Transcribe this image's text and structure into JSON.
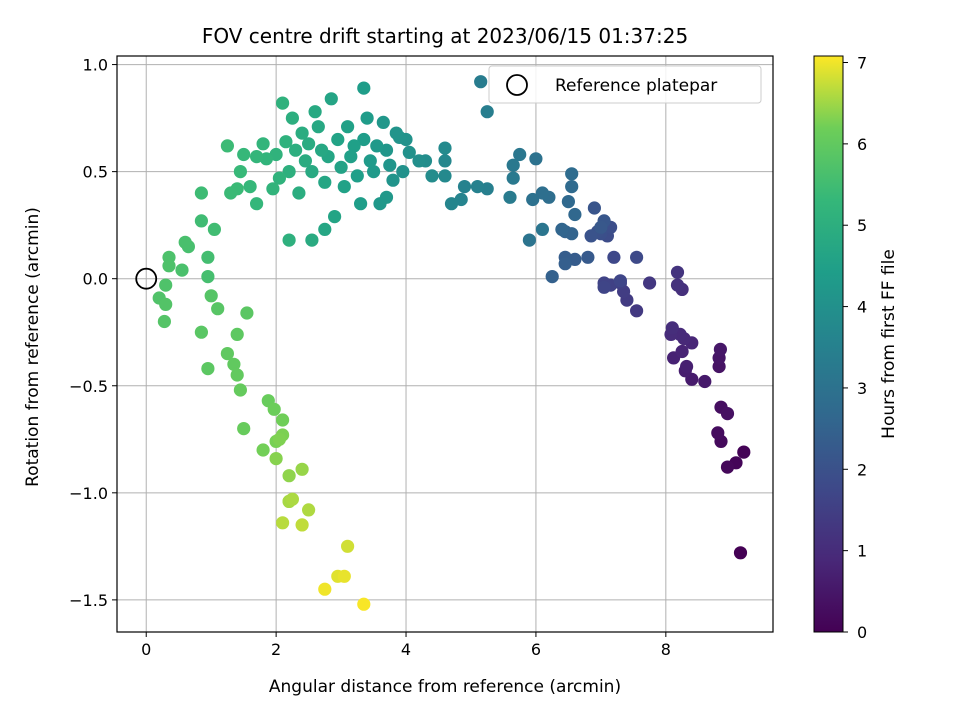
{
  "chart_data": {
    "type": "scatter",
    "title": "FOV centre drift starting at 2023/06/15 01:37:25",
    "xlabel": "Angular distance from reference (arcmin)",
    "ylabel": "Rotation from reference (arcmin)",
    "xlim": [
      -0.45,
      9.65
    ],
    "ylim": [
      -1.65,
      1.04
    ],
    "xticks": [
      0,
      2,
      4,
      6,
      8
    ],
    "yticks": [
      1.0,
      0.5,
      0.0,
      -0.5,
      -1.0,
      -1.5
    ],
    "xtick_labels": [
      "0",
      "2",
      "4",
      "6",
      "8"
    ],
    "ytick_labels": [
      "1.0",
      "0.5",
      "0.0",
      "−0.5",
      "−1.0",
      "−1.5"
    ],
    "grid": true,
    "legend": {
      "label": "Reference platepar",
      "position": "top-right"
    },
    "reference_point": {
      "x": 0,
      "y": 0
    },
    "colorbar": {
      "label": "Hours from first FF file",
      "range": [
        0,
        7.08
      ],
      "ticks": [
        0,
        1,
        2,
        3,
        4,
        5,
        6,
        7
      ],
      "colormap": "viridis"
    },
    "points": [
      [
        9.15,
        -1.28,
        0.0
      ],
      [
        9.2,
        -0.81,
        0.05
      ],
      [
        9.08,
        -0.86,
        0.1
      ],
      [
        8.95,
        -0.88,
        0.15
      ],
      [
        8.85,
        -0.76,
        0.2
      ],
      [
        8.8,
        -0.72,
        0.25
      ],
      [
        8.85,
        -0.6,
        0.3
      ],
      [
        8.95,
        -0.63,
        0.35
      ],
      [
        8.82,
        -0.41,
        0.4
      ],
      [
        8.82,
        -0.37,
        0.45
      ],
      [
        8.84,
        -0.33,
        0.5
      ],
      [
        8.6,
        -0.48,
        0.55
      ],
      [
        8.4,
        -0.47,
        0.6
      ],
      [
        8.3,
        -0.43,
        0.65
      ],
      [
        8.32,
        -0.41,
        0.7
      ],
      [
        8.12,
        -0.37,
        0.75
      ],
      [
        8.25,
        -0.34,
        0.8
      ],
      [
        8.4,
        -0.3,
        0.85
      ],
      [
        8.28,
        -0.28,
        0.9
      ],
      [
        8.22,
        -0.26,
        0.95
      ],
      [
        8.08,
        -0.26,
        1.0
      ],
      [
        8.1,
        -0.23,
        1.05
      ],
      [
        8.25,
        -0.05,
        1.1
      ],
      [
        8.18,
        -0.03,
        1.15
      ],
      [
        8.18,
        0.03,
        1.2
      ],
      [
        7.75,
        -0.02,
        1.3
      ],
      [
        7.55,
        -0.15,
        1.35
      ],
      [
        7.4,
        -0.1,
        1.4
      ],
      [
        7.35,
        -0.06,
        1.45
      ],
      [
        7.3,
        -0.02,
        1.5
      ],
      [
        7.15,
        -0.03,
        1.55
      ],
      [
        7.05,
        -0.02,
        1.6
      ],
      [
        7.05,
        -0.04,
        1.65
      ],
      [
        7.3,
        -0.01,
        1.7
      ],
      [
        7.2,
        0.1,
        1.75
      ],
      [
        7.55,
        0.1,
        1.8
      ],
      [
        7.1,
        0.2,
        1.85
      ],
      [
        7.15,
        0.24,
        1.9
      ],
      [
        7.0,
        0.21,
        1.95
      ],
      [
        6.95,
        0.22,
        2.0
      ],
      [
        6.85,
        0.2,
        2.05
      ],
      [
        6.9,
        0.33,
        2.1
      ],
      [
        7.05,
        0.27,
        2.15
      ],
      [
        7.0,
        0.24,
        2.2
      ],
      [
        6.8,
        0.1,
        2.25
      ],
      [
        6.6,
        0.09,
        2.3
      ],
      [
        6.45,
        0.1,
        2.35
      ],
      [
        6.45,
        0.07,
        2.4
      ],
      [
        6.25,
        0.01,
        2.45
      ],
      [
        6.45,
        0.22,
        2.5
      ],
      [
        6.55,
        0.21,
        2.55
      ],
      [
        6.4,
        0.23,
        2.6
      ],
      [
        6.6,
        0.3,
        2.65
      ],
      [
        6.5,
        0.36,
        2.7
      ],
      [
        6.55,
        0.43,
        2.75
      ],
      [
        6.55,
        0.49,
        2.8
      ],
      [
        6.2,
        0.38,
        2.85
      ],
      [
        6.1,
        0.4,
        2.9
      ],
      [
        5.95,
        0.37,
        2.95
      ],
      [
        6.0,
        0.56,
        3.0
      ],
      [
        5.9,
        0.18,
        3.05
      ],
      [
        6.1,
        0.23,
        3.1
      ],
      [
        5.75,
        0.58,
        3.15
      ],
      [
        5.65,
        0.53,
        3.2
      ],
      [
        5.65,
        0.47,
        3.25
      ],
      [
        5.6,
        0.38,
        3.3
      ],
      [
        5.15,
        0.92,
        3.35
      ],
      [
        5.25,
        0.78,
        3.4
      ],
      [
        5.25,
        0.42,
        3.45
      ],
      [
        5.1,
        0.43,
        3.5
      ],
      [
        4.9,
        0.43,
        3.55
      ],
      [
        4.85,
        0.37,
        3.6
      ],
      [
        4.7,
        0.35,
        3.65
      ],
      [
        4.6,
        0.55,
        3.7
      ],
      [
        4.6,
        0.48,
        3.75
      ],
      [
        4.6,
        0.61,
        3.8
      ],
      [
        4.4,
        0.48,
        3.85
      ],
      [
        4.3,
        0.55,
        3.9
      ],
      [
        4.2,
        0.55,
        3.95
      ],
      [
        4.05,
        0.59,
        4.0
      ],
      [
        3.95,
        0.5,
        4.02
      ],
      [
        4.0,
        0.65,
        4.05
      ],
      [
        3.9,
        0.66,
        4.08
      ],
      [
        3.85,
        0.68,
        4.1
      ],
      [
        3.8,
        0.46,
        4.12
      ],
      [
        3.75,
        0.53,
        4.15
      ],
      [
        3.7,
        0.6,
        4.18
      ],
      [
        3.65,
        0.73,
        4.2
      ],
      [
        3.7,
        0.38,
        4.22
      ],
      [
        3.6,
        0.35,
        4.25
      ],
      [
        3.55,
        0.62,
        4.28
      ],
      [
        3.5,
        0.5,
        4.3
      ],
      [
        3.45,
        0.55,
        4.32
      ],
      [
        3.4,
        0.75,
        4.35
      ],
      [
        3.35,
        0.65,
        4.38
      ],
      [
        3.35,
        0.89,
        4.4
      ],
      [
        3.3,
        0.35,
        4.42
      ],
      [
        3.25,
        0.48,
        4.45
      ],
      [
        3.2,
        0.62,
        4.48
      ],
      [
        3.15,
        0.57,
        4.5
      ],
      [
        3.1,
        0.71,
        4.52
      ],
      [
        3.05,
        0.43,
        4.55
      ],
      [
        3.0,
        0.52,
        4.58
      ],
      [
        2.95,
        0.65,
        4.6
      ],
      [
        2.9,
        0.29,
        4.62
      ],
      [
        2.85,
        0.84,
        4.65
      ],
      [
        2.8,
        0.57,
        4.68
      ],
      [
        2.75,
        0.45,
        4.7
      ],
      [
        2.75,
        0.23,
        4.72
      ],
      [
        2.7,
        0.6,
        4.75
      ],
      [
        2.65,
        0.71,
        4.78
      ],
      [
        2.6,
        0.78,
        4.8
      ],
      [
        2.55,
        0.5,
        4.82
      ],
      [
        2.55,
        0.18,
        4.85
      ],
      [
        2.5,
        0.63,
        4.88
      ],
      [
        2.45,
        0.55,
        4.9
      ],
      [
        2.4,
        0.68,
        4.92
      ],
      [
        2.35,
        0.4,
        4.95
      ],
      [
        2.3,
        0.6,
        4.98
      ],
      [
        2.25,
        0.75,
        5.0
      ],
      [
        2.2,
        0.5,
        5.02
      ],
      [
        2.2,
        0.18,
        5.05
      ],
      [
        2.15,
        0.64,
        5.08
      ],
      [
        2.1,
        0.82,
        5.1
      ],
      [
        2.05,
        0.47,
        5.12
      ],
      [
        2.0,
        0.58,
        5.15
      ],
      [
        1.95,
        0.42,
        5.18
      ],
      [
        1.85,
        0.56,
        5.2
      ],
      [
        1.8,
        0.63,
        5.22
      ],
      [
        1.7,
        0.57,
        5.25
      ],
      [
        1.7,
        0.35,
        5.28
      ],
      [
        1.6,
        0.43,
        5.3
      ],
      [
        1.5,
        0.58,
        5.32
      ],
      [
        1.45,
        0.5,
        5.35
      ],
      [
        1.4,
        0.42,
        5.38
      ],
      [
        1.3,
        0.4,
        5.4
      ],
      [
        1.25,
        0.62,
        5.42
      ],
      [
        0.85,
        0.4,
        5.45
      ],
      [
        0.85,
        0.27,
        5.48
      ],
      [
        1.05,
        0.23,
        5.5
      ],
      [
        0.95,
        0.1,
        5.55
      ],
      [
        0.95,
        0.01,
        5.58
      ],
      [
        0.65,
        0.15,
        5.6
      ],
      [
        0.6,
        0.17,
        5.62
      ],
      [
        0.55,
        0.04,
        5.65
      ],
      [
        0.35,
        0.1,
        5.68
      ],
      [
        0.35,
        0.06,
        5.7
      ],
      [
        0.3,
        -0.03,
        5.72
      ],
      [
        0.2,
        -0.09,
        5.75
      ],
      [
        0.3,
        -0.12,
        5.78
      ],
      [
        0.28,
        -0.2,
        5.8
      ],
      [
        1.0,
        -0.08,
        5.82
      ],
      [
        1.1,
        -0.14,
        5.85
      ],
      [
        0.85,
        -0.25,
        5.88
      ],
      [
        1.55,
        -0.16,
        5.9
      ],
      [
        0.95,
        -0.42,
        5.92
      ],
      [
        1.4,
        -0.26,
        5.95
      ],
      [
        1.25,
        -0.35,
        5.98
      ],
      [
        1.35,
        -0.4,
        6.0
      ],
      [
        1.4,
        -0.45,
        6.02
      ],
      [
        1.45,
        -0.52,
        6.05
      ],
      [
        1.5,
        -0.7,
        6.08
      ],
      [
        1.88,
        -0.57,
        6.1
      ],
      [
        1.97,
        -0.61,
        6.15
      ],
      [
        2.1,
        -0.66,
        6.2
      ],
      [
        1.8,
        -0.8,
        6.22
      ],
      [
        2.0,
        -0.76,
        6.25
      ],
      [
        2.1,
        -0.73,
        6.28
      ],
      [
        2.05,
        -0.75,
        6.3
      ],
      [
        2.0,
        -0.84,
        6.35
      ],
      [
        2.2,
        -0.92,
        6.4
      ],
      [
        2.4,
        -0.89,
        6.45
      ],
      [
        2.2,
        -1.04,
        6.5
      ],
      [
        2.2,
        -1.04,
        6.55
      ],
      [
        2.25,
        -1.03,
        6.58
      ],
      [
        2.5,
        -1.08,
        6.6
      ],
      [
        2.1,
        -1.14,
        6.65
      ],
      [
        2.4,
        -1.15,
        6.7
      ],
      [
        3.1,
        -1.25,
        6.8
      ],
      [
        2.95,
        -1.39,
        6.9
      ],
      [
        3.05,
        -1.39,
        6.95
      ],
      [
        2.75,
        -1.45,
        7.0
      ],
      [
        3.35,
        -1.52,
        7.05
      ]
    ]
  }
}
